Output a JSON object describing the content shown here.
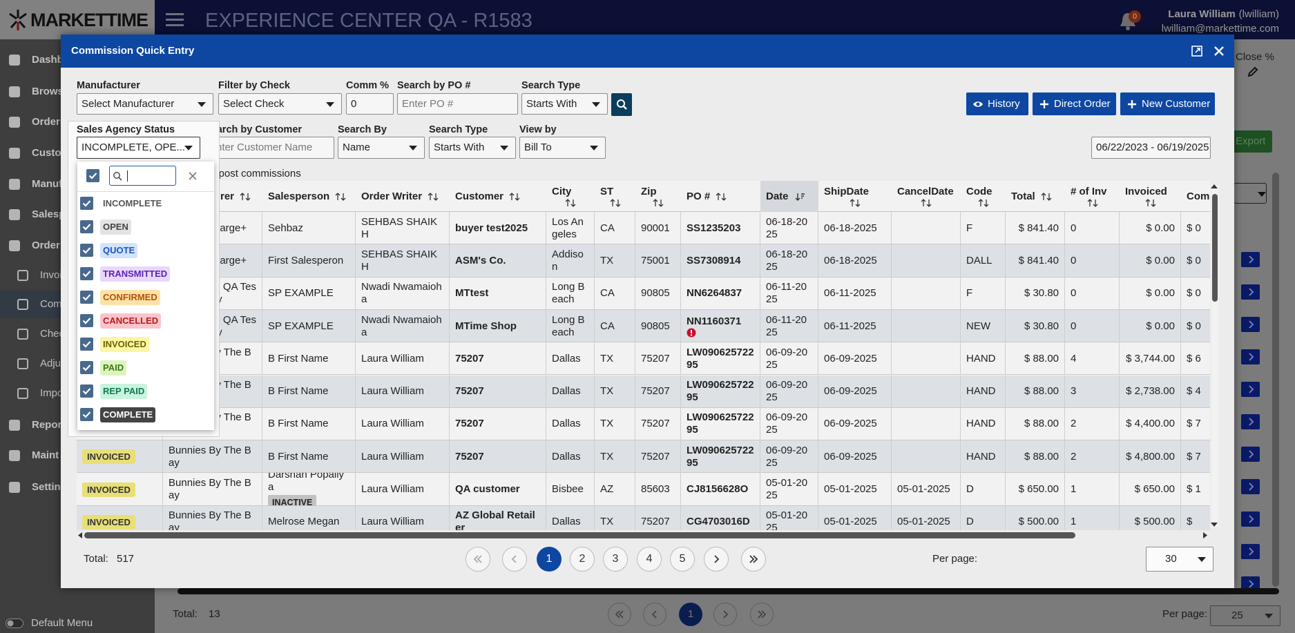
{
  "app": {
    "logo": "MARKETTIME",
    "title": "EXPERIENCE CENTER QA - R1583",
    "notifications": "0",
    "user_name": "Laura William",
    "user_login": "(lwilliam)",
    "user_email": "lwilliam@markettime.com"
  },
  "sidebar": {
    "items": [
      "Dashb",
      "Brows",
      "Orders",
      "Custo",
      "Manuf",
      "Salesp",
      "Order",
      "Invoice",
      "Comm",
      "Check",
      "Adjus",
      "Import",
      "Repor",
      "Maint",
      "Setting"
    ],
    "active": "Comm",
    "footer": "Default Menu"
  },
  "background": {
    "close_label": "Close %",
    "export": "Export",
    "total_label": "Total:",
    "total": "13",
    "current_page": "1",
    "per_page_label": "Per page:",
    "per_page": "25"
  },
  "modal": {
    "title": "Commission Quick Entry",
    "filters": {
      "manufacturer": {
        "label": "Manufacturer",
        "value": "Select Manufacturer"
      },
      "check": {
        "label": "Filter by Check",
        "value": "Select Check"
      },
      "comm": {
        "label": "Comm %",
        "value": "0"
      },
      "po": {
        "label": "Search by PO #",
        "placeholder": "Enter PO #"
      },
      "po_search_type": {
        "label": "Search Type",
        "value": "Starts With"
      },
      "status": {
        "label": "Sales Agency Status",
        "value": "INCOMPLETE, OPE..."
      },
      "customer": {
        "label": "Search by Customer",
        "placeholder": "Enter Customer Name"
      },
      "search_by": {
        "label": "Search By",
        "value": "Name"
      },
      "customer_search_type": {
        "label": "Search Type",
        "value": "Starts With"
      },
      "view_by": {
        "label": "View by",
        "value": "Bill To"
      },
      "date_range": "06/22/2023 - 06/19/2025",
      "post_commissions": "o post commissions"
    },
    "buttons": [
      "History",
      "Direct Order",
      "New Customer"
    ],
    "status_options": [
      "INCOMPLETE",
      "OPEN",
      "QUOTE",
      "TRANSMITTED",
      "CONFIRMED",
      "CANCELLED",
      "INVOICED",
      "PAID",
      "REP PAID",
      "COMPLETE"
    ],
    "table": {
      "columns": [
        "Manufacturer",
        "Salesperson",
        "Order Writer",
        "Customer",
        "City",
        "ST",
        "Zip",
        "PO #",
        "Date",
        "ShipDate",
        "CancelDate",
        "Code",
        "Total",
        "# of Inv",
        "Invoiced",
        "Com"
      ],
      "rows": [
        {
          "status": null,
          "cells": [
            "harge+",
            "Sehbaz",
            "SEHBAS SHAIKH",
            "buyer test2025",
            "Los Angeles",
            "CA",
            "90001",
            "SS1235203",
            "06-18-2025",
            "06-18-2025",
            null,
            "F",
            "$ 841.40",
            "0",
            "$ 0.00",
            "$ 0"
          ]
        },
        {
          "status": null,
          "cells": [
            "harge+",
            "First Salesperon",
            "SEHBAS SHAIKH",
            "ASM's Co.",
            "Addison",
            "TX",
            "75001",
            "SS7308914",
            "06-18-2025",
            "06-18-2025",
            null,
            "DALL",
            "$ 841.40",
            "0",
            "$ 0.00",
            "$ 0"
          ]
        },
        {
          "status": null,
          "cells": [
            "+ QA Testy",
            "SP EXAMPLE",
            "Nwadi Nwamaioha",
            "MTtest",
            "Long Beach",
            "CA",
            "90805",
            "NN6264837",
            "06-11-2025",
            "06-11-2025",
            null,
            "F",
            "$ 30.80",
            "0",
            "$ 0.00",
            "$ 0"
          ]
        },
        {
          "status": null,
          "alert": true,
          "cells": [
            "+ QA Testy",
            "SP EXAMPLE",
            "Nwadi Nwamaioha",
            "MTime Shop",
            "Long Beach",
            "CA",
            "90805",
            "NN1160371",
            "06-11-2025",
            "06-11-2025",
            null,
            "NEW",
            "$ 30.80",
            "0",
            "$ 0.00",
            "$ 0"
          ]
        },
        {
          "status": null,
          "cells": [
            "Bunnies By The Bay",
            "B First Name",
            "Laura William",
            "75207",
            "Dallas",
            "TX",
            "75207",
            "LW09062572295",
            "06-09-2025",
            "06-09-2025",
            null,
            "HAND",
            "$ 88.00",
            "4",
            "$ 3,744.00",
            "$ 6"
          ]
        },
        {
          "status": null,
          "cells": [
            "Bunnies By The Bay",
            "B First Name",
            "Laura William",
            "75207",
            "Dallas",
            "TX",
            "75207",
            "LW09062572295",
            "06-09-2025",
            "06-09-2025",
            null,
            "HAND",
            "$ 88.00",
            "3",
            "$ 2,738.00",
            "$ 4"
          ]
        },
        {
          "status": null,
          "cells": [
            "Bunnies By The Bay",
            "B First Name",
            "Laura William",
            "75207",
            "Dallas",
            "TX",
            "75207",
            "LW09062572295",
            "06-09-2025",
            "06-09-2025",
            null,
            "HAND",
            "$ 88.00",
            "2",
            "$ 4,400.00",
            "$ 7"
          ]
        },
        {
          "status": "INVOICED",
          "cells": [
            "Bunnies By The Bay",
            "B First Name",
            "Laura William",
            "75207",
            "Dallas",
            "TX",
            "75207",
            "LW09062572295",
            "06-09-2025",
            "06-09-2025",
            null,
            "HAND",
            "$ 88.00",
            "2",
            "$ 4,800.00",
            "$ 7"
          ]
        },
        {
          "status": "INVOICED",
          "salesperson_badge": "INACTIVE",
          "cells": [
            "Bunnies By The Bay",
            "Darshan Popaliya",
            "Laura William",
            "QA customer",
            "Bisbee",
            "AZ",
            "85603",
            "CJ8156628O",
            "05-01-2025",
            "05-01-2025",
            "05-01-2025",
            "D",
            "$ 650.00",
            "1",
            "$ 650.00",
            "$ 1"
          ]
        },
        {
          "status": "INVOICED",
          "cells": [
            "Bunnies By The Bay",
            "Melrose Megan",
            "Laura William",
            "AZ Global Retailer",
            "Dallas",
            "TX",
            "75207",
            "CG4703016D",
            "05-01-2025",
            "05-01-2025",
            "05-01-2025",
            "D",
            "$ 500.00",
            "1",
            "$ 500.00",
            "$"
          ]
        }
      ]
    },
    "footer": {
      "total_label": "Total:",
      "total": "517",
      "pages": [
        "1",
        "2",
        "3",
        "4",
        "5"
      ],
      "current_page": "1",
      "per_page_label": "Per page:",
      "per_page": "30"
    }
  }
}
